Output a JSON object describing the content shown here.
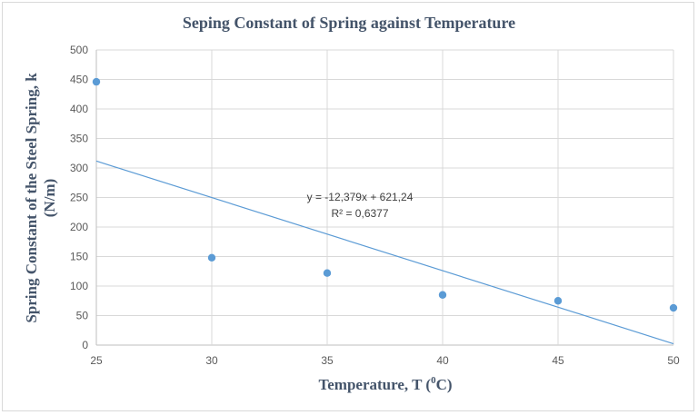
{
  "chart_data": {
    "type": "scatter",
    "title": "Seping Constant of Spring against Temperature",
    "xlabel": "Temperature, T  (",
    "xlabel_sup": "0",
    "xlabel_end": "C)",
    "ylabel": "Spring Constant of the Steel Spring, k",
    "ylabel_line2": "(N/m)",
    "xlim": [
      25,
      50
    ],
    "ylim": [
      0,
      500
    ],
    "xticks": [
      25,
      30,
      35,
      40,
      45,
      50
    ],
    "yticks": [
      0,
      50,
      100,
      150,
      200,
      250,
      300,
      350,
      400,
      450,
      500
    ],
    "grid": true,
    "points": [
      {
        "x": 25,
        "y": 446
      },
      {
        "x": 30,
        "y": 148
      },
      {
        "x": 35,
        "y": 122
      },
      {
        "x": 40,
        "y": 85
      },
      {
        "x": 45,
        "y": 75
      },
      {
        "x": 50,
        "y": 63
      }
    ],
    "trendline": {
      "type": "linear",
      "slope": -12.379,
      "intercept": 621.24,
      "equation": "y = -12,379x + 621,24",
      "r2": "R² = 0,6377"
    },
    "colors": {
      "points": "#5b9bd5",
      "trendline": "#5b9bd5",
      "grid": "#d9d9d9"
    }
  }
}
